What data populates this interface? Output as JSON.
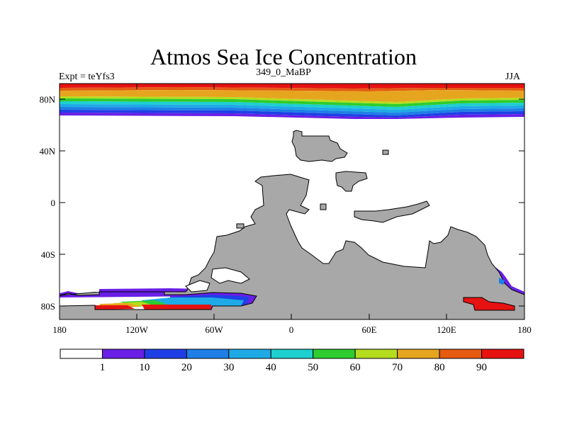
{
  "title": "Atmos Sea Ice Concentration",
  "left_label": "Expt = teYfs3",
  "center_label": "349_0_MaBP",
  "right_label": "JJA",
  "y_ticks": [
    "80N",
    "40N",
    "0",
    "40S",
    "80S"
  ],
  "x_ticks": [
    "180",
    "120W",
    "60W",
    "0",
    "60E",
    "120E",
    "180"
  ],
  "colorbar": {
    "labels": [
      "1",
      "10",
      "20",
      "30",
      "40",
      "50",
      "60",
      "70",
      "80",
      "90"
    ],
    "colors": [
      "#ffffff",
      "#6a1fe6",
      "#1e3fe6",
      "#1e7fe6",
      "#1eaae6",
      "#1ecfcf",
      "#2ecc2e",
      "#b6dc1e",
      "#e6a51e",
      "#e65a12",
      "#e61212"
    ]
  },
  "colors": {
    "land": "#a8a8a8",
    "ocean": "#ffffff"
  }
}
